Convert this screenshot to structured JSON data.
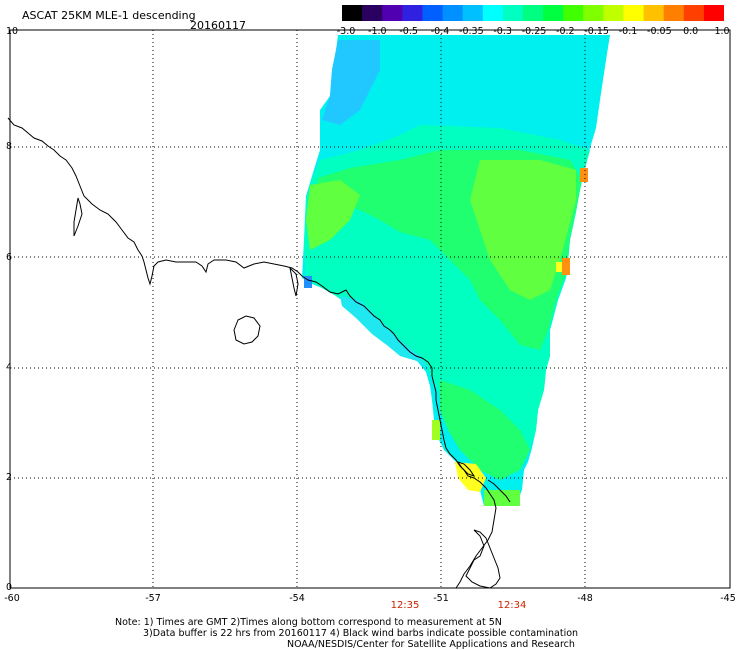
{
  "header": {
    "title": "ASCAT 25KM MLE-1 descending",
    "date": "20160117"
  },
  "colorbar": {
    "colors": [
      "#000000",
      "#2a0060",
      "#5000b0",
      "#3020e0",
      "#0060ff",
      "#0090ff",
      "#00c0ff",
      "#00ffff",
      "#00ffc0",
      "#00ff80",
      "#00ff40",
      "#40ff00",
      "#80ff00",
      "#c0ff00",
      "#ffff00",
      "#ffc000",
      "#ff8000",
      "#ff4000",
      "#ff0000"
    ],
    "labels": [
      "-3.0",
      "-1.0",
      "-0.5",
      "-0.4",
      "-0.35",
      "-0.3",
      "-0.25",
      "-0.2",
      "-0.15",
      "-0.1",
      "-0.05",
      "0.0",
      "1.0"
    ]
  },
  "axes": {
    "x_ticks": [
      "-60",
      "-57",
      "-54",
      "-51",
      "-48",
      "-45"
    ],
    "y_ticks": [
      "0",
      "2",
      "4",
      "6",
      "8",
      "10"
    ]
  },
  "times": {
    "left": "12:35",
    "right": "12:34"
  },
  "note": {
    "line1": "Note: 1) Times are GMT 2)Times along bottom correspond to measurement at 5N",
    "line2": "3)Data buffer is 22 hrs from 20160117 4) Black wind barbs indicate possible contamination",
    "line3": "NOAA/NESDIS/Center for Satellite Applications and Research"
  },
  "map": {
    "data_colors": {
      "cyan": "#00f0f0",
      "light_cyan": "#20e8f0",
      "blue_cyan": "#20c8ff",
      "green_cyan": "#00ffc0",
      "green": "#20ff70",
      "lime": "#60ff40",
      "yellow_green": "#a0ff20",
      "yellow": "#ffff20",
      "orange": "#ff9010"
    }
  }
}
